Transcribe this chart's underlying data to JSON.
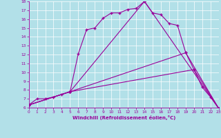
{
  "xlabel": "Windchill (Refroidissement éolien,°C)",
  "bg_color": "#b2e0e8",
  "line_color": "#990099",
  "xlim": [
    0,
    23
  ],
  "ylim": [
    6,
    18
  ],
  "xticks": [
    0,
    1,
    2,
    3,
    4,
    5,
    6,
    7,
    8,
    9,
    10,
    11,
    12,
    13,
    14,
    15,
    16,
    17,
    18,
    19,
    20,
    21,
    22,
    23
  ],
  "yticks": [
    6,
    7,
    8,
    9,
    10,
    11,
    12,
    13,
    14,
    15,
    16,
    17,
    18
  ],
  "line1_x": [
    0,
    1,
    2,
    3,
    4,
    5,
    6,
    7,
    8,
    9,
    10,
    11,
    12,
    13,
    14,
    15,
    16,
    17,
    18,
    19,
    20,
    21,
    22,
    23
  ],
  "line1_y": [
    6.3,
    7.0,
    7.0,
    7.2,
    7.5,
    7.8,
    12.1,
    14.8,
    15.0,
    16.1,
    16.7,
    16.7,
    17.1,
    17.2,
    18.0,
    16.7,
    16.5,
    15.5,
    15.3,
    12.2,
    10.3,
    8.3,
    7.2,
    5.9
  ],
  "line2_x": [
    0,
    5,
    20,
    23
  ],
  "line2_y": [
    6.3,
    7.8,
    10.3,
    5.9
  ],
  "line3_x": [
    0,
    5,
    19,
    23
  ],
  "line3_y": [
    6.3,
    7.8,
    12.2,
    5.9
  ],
  "line4_x": [
    0,
    5,
    14,
    23
  ],
  "line4_y": [
    6.3,
    7.8,
    18.0,
    5.9
  ],
  "marker": "+"
}
